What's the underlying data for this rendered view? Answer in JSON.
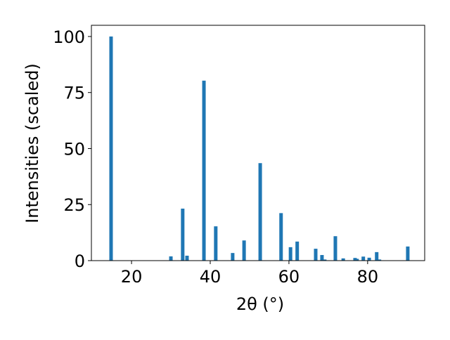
{
  "chart_data": {
    "type": "bar",
    "xlabel": "2θ (°)",
    "ylabel": "Intensities (scaled)",
    "color": "#1f77b4",
    "x": [
      14.8,
      30.0,
      33.0,
      34.1,
      38.4,
      41.4,
      45.7,
      48.6,
      52.7,
      58.0,
      60.4,
      62.1,
      66.8,
      68.4,
      69.1,
      71.8,
      73.8,
      76.8,
      77.3,
      78.9,
      80.4,
      82.3,
      83.0,
      90.2
    ],
    "values": [
      100,
      1.9,
      23.2,
      2.2,
      80.3,
      15.3,
      3.4,
      9.0,
      43.5,
      21.2,
      6.0,
      8.5,
      5.3,
      2.5,
      0.5,
      10.9,
      1.0,
      1.2,
      0.8,
      1.8,
      1.3,
      3.8,
      0.5,
      6.3
    ],
    "xlim": [
      9.8,
      94.5
    ],
    "ylim": [
      0,
      105
    ],
    "xticks": [
      20,
      40,
      60,
      80
    ],
    "yticks": [
      0,
      25,
      50,
      75,
      100
    ]
  }
}
